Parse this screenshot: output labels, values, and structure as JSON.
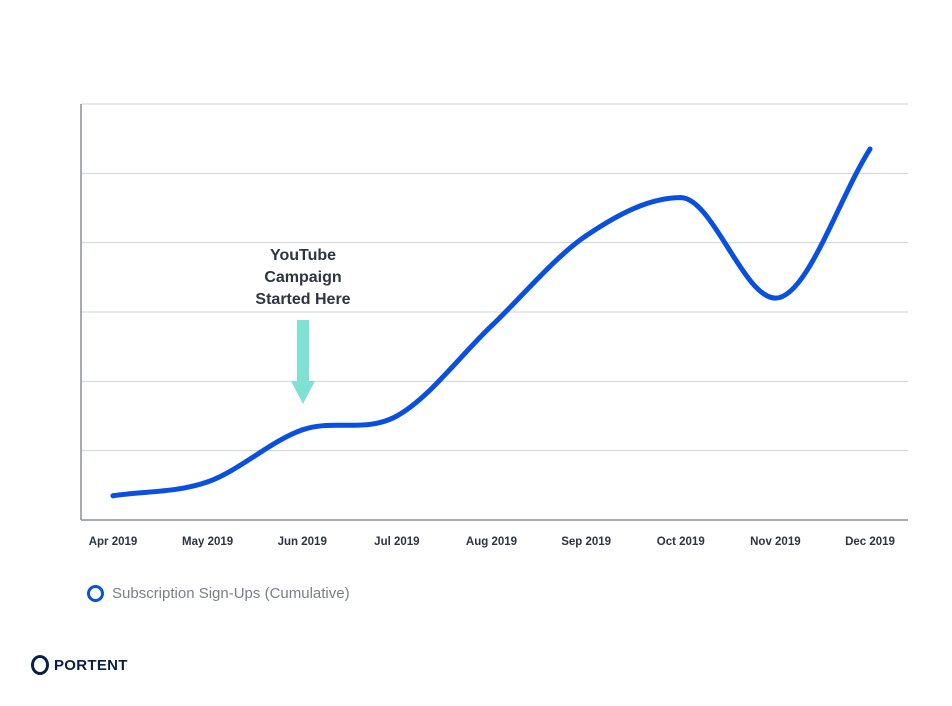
{
  "chart_data": {
    "type": "line",
    "categories": [
      "Apr 2019",
      "May 2019",
      "Jun 2019",
      "Jul 2019",
      "Aug 2019",
      "Sep 2019",
      "Oct 2019",
      "Nov 2019",
      "Dec 2019"
    ],
    "series": [
      {
        "name": "Subscription Sign-Ups (Cumulative)",
        "values": [
          0.35,
          0.55,
          1.3,
          1.5,
          2.8,
          4.1,
          4.65,
          3.2,
          5.35
        ],
        "color": "#0a50e0"
      }
    ],
    "ylim": [
      0,
      6
    ],
    "y_gridlines": [
      1,
      2,
      3,
      4,
      5,
      6
    ],
    "y_tick_labels_shown": false,
    "grid": true,
    "legend_position": "bottom-left",
    "annotation": {
      "lines": [
        "YouTube",
        "Campaign",
        "Started Here"
      ],
      "at_category": "Jun 2019",
      "arrow_color": "#7fe0d4"
    }
  },
  "brand": {
    "name": "PORTENT",
    "icon": "portent-logo-icon"
  }
}
